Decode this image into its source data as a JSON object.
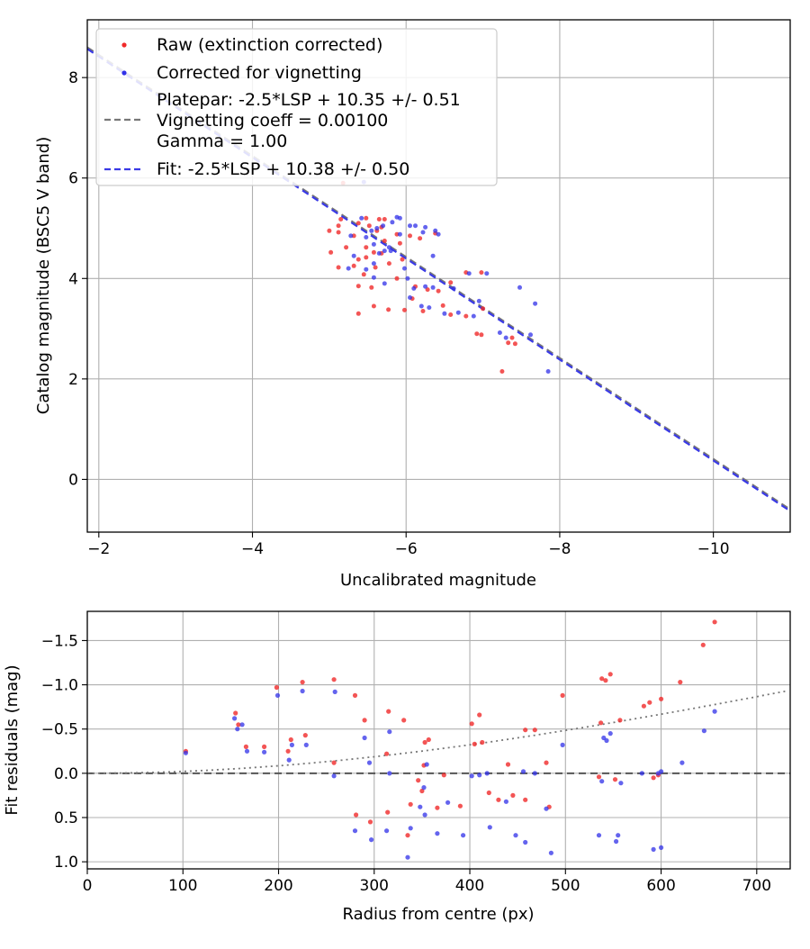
{
  "chart_data": [
    {
      "type": "scatter",
      "id": "top",
      "xlabel": "Uncalibrated magnitude",
      "ylabel": "Catalog magnitude (BSC5 V band)",
      "xlim": [
        -1.85,
        -11.0
      ],
      "ylim": [
        9.15,
        -1.05
      ],
      "xticks": [
        -2,
        -4,
        -6,
        -8,
        -10
      ],
      "xtick_labels": [
        "−2",
        "−4",
        "−6",
        "−8",
        "−10"
      ],
      "yticks": [
        0,
        2,
        4,
        6,
        8
      ],
      "ytick_labels": [
        "0",
        "2",
        "4",
        "6",
        "8"
      ],
      "grid": true,
      "legend_position": "top-left",
      "legend": [
        {
          "label": "Raw (extinction corrected)",
          "kind": "marker",
          "color": "#f02a2a"
        },
        {
          "label": "Corrected for vignetting",
          "kind": "marker",
          "color": "#3030e8"
        },
        {
          "label": "Platepar: -2.5*LSP + 10.35 +/- 0.51",
          "label2": "Vignetting coeff = 0.00100",
          "label3": "Gamma = 1.00",
          "kind": "line",
          "color": "#777777"
        },
        {
          "label": "Fit: -2.5*LSP + 10.38 +/- 0.50",
          "kind": "line",
          "color": "#3a3ae6"
        }
      ],
      "lines": [
        {
          "name": "Platepar",
          "x": [
            -1.85,
            -11.0
          ],
          "y": [
            8.6,
            -0.6
          ],
          "color": "#777777",
          "dash": "dashed"
        },
        {
          "name": "Fit",
          "x": [
            -1.85,
            -11.0
          ],
          "y": [
            8.57,
            -0.63
          ],
          "color": "#3a3ae6",
          "dash": "dashed"
        }
      ],
      "series": [
        {
          "name": "Raw (extinction corrected)",
          "color": "#f02a2a",
          "points": [
            [
              -7.25,
              2.15
            ],
            [
              -6.92,
              2.9
            ],
            [
              -6.98,
              2.88
            ],
            [
              -7.33,
              2.72
            ],
            [
              -7.38,
              2.82
            ],
            [
              -7.42,
              2.7
            ],
            [
              -6.78,
              3.25
            ],
            [
              -7.0,
              3.4
            ],
            [
              -6.58,
              3.28
            ],
            [
              -6.48,
              3.46
            ],
            [
              -6.22,
              3.35
            ],
            [
              -5.98,
              3.37
            ],
            [
              -5.38,
              3.3
            ],
            [
              -5.77,
              3.38
            ],
            [
              -5.58,
              3.45
            ],
            [
              -6.08,
              3.6
            ],
            [
              -6.42,
              3.75
            ],
            [
              -6.28,
              3.78
            ],
            [
              -5.38,
              3.85
            ],
            [
              -5.55,
              3.82
            ],
            [
              -5.88,
              4.0
            ],
            [
              -6.12,
              3.84
            ],
            [
              -6.58,
              3.92
            ],
            [
              -6.78,
              4.12
            ],
            [
              -6.98,
              4.12
            ],
            [
              -5.45,
              4.08
            ],
            [
              -5.32,
              4.25
            ],
            [
              -5.12,
              4.22
            ],
            [
              -5.6,
              4.22
            ],
            [
              -5.38,
              4.38
            ],
            [
              -5.48,
              4.42
            ],
            [
              -5.78,
              4.3
            ],
            [
              -5.68,
              4.5
            ],
            [
              -5.58,
              4.52
            ],
            [
              -5.22,
              4.62
            ],
            [
              -5.02,
              4.52
            ],
            [
              -5.48,
              4.62
            ],
            [
              -5.72,
              4.75
            ],
            [
              -5.92,
              4.7
            ],
            [
              -5.32,
              4.85
            ],
            [
              -5.12,
              4.92
            ],
            [
              -5.0,
              4.95
            ],
            [
              -5.62,
              4.95
            ],
            [
              -5.88,
              4.88
            ],
            [
              -6.05,
              4.85
            ],
            [
              -6.18,
              4.8
            ],
            [
              -5.38,
              5.1
            ],
            [
              -5.12,
              5.05
            ],
            [
              -5.52,
              5.05
            ],
            [
              -5.68,
              5.02
            ],
            [
              -5.72,
              5.18
            ],
            [
              -5.65,
              5.18
            ],
            [
              -5.48,
              5.2
            ],
            [
              -5.15,
              5.18
            ],
            [
              -5.18,
              5.9
            ],
            [
              -6.38,
              4.9
            ],
            [
              -5.95,
              4.38
            ]
          ]
        },
        {
          "name": "Corrected for vignetting",
          "color": "#3030e8",
          "points": [
            [
              -7.85,
              2.15
            ],
            [
              -7.3,
              2.82
            ],
            [
              -7.62,
              2.88
            ],
            [
              -7.22,
              2.92
            ],
            [
              -6.88,
              3.25
            ],
            [
              -6.68,
              3.32
            ],
            [
              -6.5,
              3.3
            ],
            [
              -6.3,
              3.42
            ],
            [
              -6.2,
              3.45
            ],
            [
              -7.68,
              3.5
            ],
            [
              -6.95,
              3.55
            ],
            [
              -6.35,
              3.82
            ],
            [
              -6.25,
              3.84
            ],
            [
              -6.62,
              3.8
            ],
            [
              -6.82,
              4.1
            ],
            [
              -7.05,
              4.1
            ],
            [
              -7.48,
              3.82
            ],
            [
              -6.05,
              3.62
            ],
            [
              -6.1,
              3.8
            ],
            [
              -6.02,
              4.0
            ],
            [
              -5.98,
              4.2
            ],
            [
              -5.72,
              3.9
            ],
            [
              -5.58,
              4.02
            ],
            [
              -5.48,
              4.18
            ],
            [
              -5.65,
              4.5
            ],
            [
              -5.72,
              4.55
            ],
            [
              -5.8,
              4.55
            ],
            [
              -5.78,
              4.62
            ],
            [
              -5.58,
              4.68
            ],
            [
              -5.48,
              4.82
            ],
            [
              -5.28,
              4.85
            ],
            [
              -5.32,
              4.45
            ],
            [
              -5.55,
              4.95
            ],
            [
              -5.62,
              5.0
            ],
            [
              -5.7,
              5.05
            ],
            [
              -5.88,
              5.22
            ],
            [
              -5.92,
              5.2
            ],
            [
              -6.05,
              5.05
            ],
            [
              -6.12,
              5.05
            ],
            [
              -6.25,
              5.02
            ],
            [
              -6.38,
              4.95
            ],
            [
              -6.42,
              4.88
            ],
            [
              -6.35,
              4.45
            ],
            [
              -5.45,
              5.92
            ],
            [
              -5.42,
              5.2
            ],
            [
              -5.25,
              4.2
            ],
            [
              -5.58,
              4.3
            ],
            [
              -6.22,
              4.92
            ],
            [
              -5.92,
              4.88
            ],
            [
              -5.82,
              5.12
            ]
          ]
        }
      ]
    },
    {
      "type": "scatter",
      "id": "bottom",
      "xlabel": "Radius from centre (px)",
      "ylabel": "Fit residuals (mag)",
      "xlim": [
        0,
        735
      ],
      "ylim": [
        -1.83,
        1.08
      ],
      "xticks": [
        0,
        100,
        200,
        300,
        400,
        500,
        600,
        700
      ],
      "xtick_labels": [
        "0",
        "100",
        "200",
        "300",
        "400",
        "500",
        "600",
        "700"
      ],
      "yticks": [
        1.0,
        0.5,
        0.0,
        -0.5,
        -1.0,
        -1.5
      ],
      "ytick_labels": [
        "1.0",
        "0.5",
        "0.0",
        "−0.5",
        "−1.0",
        "−1.5"
      ],
      "grid": true,
      "lines": [
        {
          "name": "zero",
          "type": "hline",
          "y": 0.0,
          "color": "#555555",
          "dash": "dashed"
        },
        {
          "name": "vignetting model",
          "type": "curve",
          "coeff": 0.001,
          "color": "#777777",
          "dash": "dotted",
          "x_from": 0,
          "x_to": 732
        }
      ],
      "series": [
        {
          "name": "Raw (extinction corrected)",
          "color": "#f02a2a",
          "points": [
            [
              103,
              -0.25
            ],
            [
              155,
              -0.68
            ],
            [
              158,
              -0.55
            ],
            [
              166,
              -0.3
            ],
            [
              185,
              -0.3
            ],
            [
              198,
              -0.97
            ],
            [
              210,
              -0.25
            ],
            [
              213,
              -0.38
            ],
            [
              225,
              -1.03
            ],
            [
              228,
              -0.43
            ],
            [
              258,
              -1.06
            ],
            [
              258,
              -0.12
            ],
            [
              280,
              -0.88
            ],
            [
              281,
              0.47
            ],
            [
              290,
              -0.6
            ],
            [
              296,
              0.55
            ],
            [
              313,
              -0.22
            ],
            [
              315,
              -0.7
            ],
            [
              314,
              0.44
            ],
            [
              331,
              -0.6
            ],
            [
              335,
              0.7
            ],
            [
              338,
              0.35
            ],
            [
              346,
              0.08
            ],
            [
              350,
              0.2
            ],
            [
              352,
              -0.09
            ],
            [
              353,
              -0.35
            ],
            [
              357,
              -0.38
            ],
            [
              366,
              0.39
            ],
            [
              373,
              0.02
            ],
            [
              390,
              0.37
            ],
            [
              402,
              -0.56
            ],
            [
              405,
              -0.33
            ],
            [
              410,
              -0.66
            ],
            [
              413,
              -0.35
            ],
            [
              420,
              0.22
            ],
            [
              430,
              0.3
            ],
            [
              440,
              -0.1
            ],
            [
              445,
              0.25
            ],
            [
              458,
              0.3
            ],
            [
              458,
              -0.49
            ],
            [
              468,
              -0.49
            ],
            [
              480,
              -0.12
            ],
            [
              483,
              0.38
            ],
            [
              497,
              -0.88
            ],
            [
              535,
              0.04
            ],
            [
              537,
              -0.57
            ],
            [
              538,
              -1.07
            ],
            [
              542,
              -1.05
            ],
            [
              547,
              -1.12
            ],
            [
              552,
              0.07
            ],
            [
              557,
              -0.6
            ],
            [
              582,
              -0.76
            ],
            [
              588,
              -0.8
            ],
            [
              592,
              0.05
            ],
            [
              597,
              0.02
            ],
            [
              600,
              -0.84
            ],
            [
              620,
              -1.03
            ],
            [
              644,
              -1.45
            ],
            [
              656,
              -1.71
            ]
          ]
        },
        {
          "name": "Corrected for vignetting",
          "color": "#3030e8",
          "points": [
            [
              103,
              -0.23
            ],
            [
              154,
              -0.62
            ],
            [
              157,
              -0.5
            ],
            [
              162,
              -0.55
            ],
            [
              167,
              -0.25
            ],
            [
              185,
              -0.24
            ],
            [
              199,
              -0.88
            ],
            [
              211,
              -0.15
            ],
            [
              214,
              -0.32
            ],
            [
              225,
              -0.93
            ],
            [
              229,
              -0.32
            ],
            [
              259,
              -0.92
            ],
            [
              258,
              0.03
            ],
            [
              280,
              0.65
            ],
            [
              290,
              -0.4
            ],
            [
              295,
              -0.12
            ],
            [
              297,
              0.75
            ],
            [
              313,
              0.65
            ],
            [
              316,
              -0.47
            ],
            [
              316,
              0.0
            ],
            [
              335,
              0.95
            ],
            [
              338,
              0.62
            ],
            [
              348,
              0.38
            ],
            [
              352,
              0.16
            ],
            [
              353,
              0.47
            ],
            [
              355,
              -0.1
            ],
            [
              366,
              0.68
            ],
            [
              377,
              0.33
            ],
            [
              393,
              0.7
            ],
            [
              402,
              0.03
            ],
            [
              410,
              0.02
            ],
            [
              418,
              0.0
            ],
            [
              421,
              0.61
            ],
            [
              438,
              0.32
            ],
            [
              448,
              0.7
            ],
            [
              456,
              -0.02
            ],
            [
              458,
              0.78
            ],
            [
              468,
              0.0
            ],
            [
              480,
              0.4
            ],
            [
              485,
              0.9
            ],
            [
              497,
              -0.32
            ],
            [
              535,
              0.7
            ],
            [
              538,
              0.09
            ],
            [
              540,
              -0.4
            ],
            [
              543,
              -0.37
            ],
            [
              547,
              -0.45
            ],
            [
              553,
              0.77
            ],
            [
              555,
              0.7
            ],
            [
              558,
              0.11
            ],
            [
              580,
              0.0
            ],
            [
              592,
              0.86
            ],
            [
              597,
              0.0
            ],
            [
              600,
              0.84
            ],
            [
              600,
              -0.02
            ],
            [
              622,
              -0.12
            ],
            [
              645,
              -0.48
            ],
            [
              656,
              -0.7
            ]
          ]
        }
      ]
    }
  ]
}
